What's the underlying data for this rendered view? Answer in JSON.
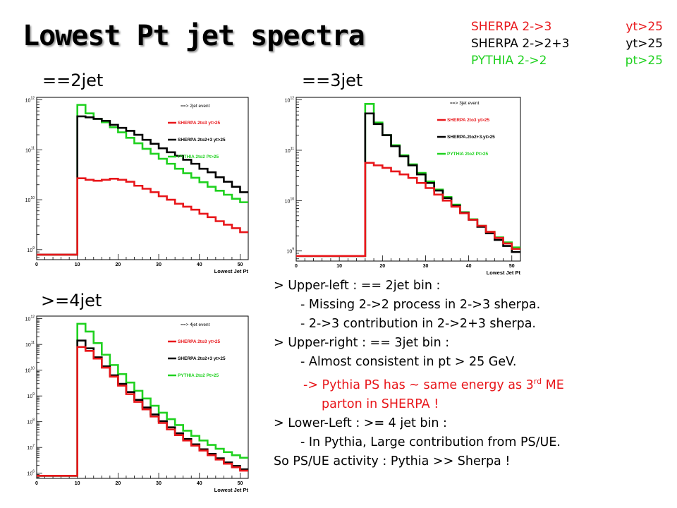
{
  "slide": {
    "title": "Lowest Pt jet spectra",
    "legend": [
      {
        "left": "SHERPA 2->3",
        "right": "yt>25",
        "color": "#e8161a"
      },
      {
        "left": "SHERPA 2->2+3",
        "right": "yt>25",
        "color": "#000000"
      },
      {
        "left": "PYTHIA 2->2",
        "right": "pt>25",
        "color": "#1fd11f"
      }
    ],
    "panel_labels": [
      "==2jet",
      "==3jet",
      ">=4jet"
    ],
    "notes": {
      "l1": "> Upper-left : == 2jet bin :",
      "l2": "- Missing 2->2 process in 2->3 sherpa.",
      "l3": "- 2->3 contribution in 2->2+3 sherpa.",
      "l4": "> Upper-right : == 3jet bin :",
      "l5": "- Almost consistent in pt > 25 GeV.",
      "l6a": "-> Pythia PS has ~ same energy as 3",
      "l6sup": "rd",
      "l6b": " ME",
      "l7": "parton in SHERPA !",
      "l8": "> Lower-Left : >= 4 jet bin :",
      "l9": "- In Pythia, Large contribution from PS/UE.",
      "l10": "So PS/UE activity : Pythia >> Sherpa !"
    }
  },
  "chart_data": [
    {
      "type": "line",
      "title": "",
      "xlabel": "Lowest Jet Pt",
      "ylabel": "",
      "log_y": true,
      "xlim": [
        0,
        52
      ],
      "ylim_log10": [
        8.8,
        12.05
      ],
      "x_ticks": [
        "0",
        "10",
        "20",
        "30",
        "40",
        "50"
      ],
      "y_ticks": [
        {
          "base": "10",
          "exp": "9"
        },
        {
          "base": "10",
          "exp": "10"
        },
        {
          "base": "10",
          "exp": "11"
        },
        {
          "base": "10",
          "exp": "12"
        }
      ],
      "legend": {
        "header": "==> 2jet event",
        "entries": [
          "SHERPA 2to3 yt>25",
          "SHERPA 2to2+3 yt>25",
          "PYTHIA 2to2 Pt>25"
        ]
      },
      "bin_edges": [
        0,
        10,
        12,
        14,
        16,
        18,
        20,
        22,
        24,
        26,
        28,
        30,
        32,
        34,
        36,
        38,
        40,
        42,
        44,
        46,
        48,
        50,
        52
      ],
      "series": [
        {
          "name": "PYTHIA 2to2 Pt>25",
          "color": "#1fd11f",
          "log10_values": [
            8.9,
            11.9,
            11.73,
            11.62,
            11.55,
            11.45,
            11.35,
            11.24,
            11.13,
            11.02,
            10.92,
            10.82,
            10.72,
            10.62,
            10.53,
            10.44,
            10.35,
            10.26,
            10.18,
            10.1,
            10.02,
            9.95
          ]
        },
        {
          "name": "SHERPA 2to2+3 yt>25",
          "color": "#000000",
          "log10_values": [
            8.9,
            11.67,
            11.65,
            11.62,
            11.58,
            11.5,
            11.44,
            11.38,
            11.3,
            11.2,
            11.12,
            11.03,
            10.95,
            10.88,
            10.8,
            10.72,
            10.62,
            10.55,
            10.45,
            10.36,
            10.26,
            10.15
          ]
        },
        {
          "name": "SHERPA 2to3 yt>25",
          "color": "#e8161a",
          "log10_values": [
            8.9,
            10.43,
            10.4,
            10.38,
            10.4,
            10.42,
            10.4,
            10.36,
            10.28,
            10.22,
            10.15,
            10.07,
            10.0,
            9.92,
            9.86,
            9.8,
            9.72,
            9.65,
            9.57,
            9.5,
            9.43,
            9.35
          ]
        }
      ]
    },
    {
      "type": "line",
      "title": "",
      "xlabel": "Lowest Jet Pt",
      "ylabel": "",
      "log_y": true,
      "xlim": [
        0,
        52
      ],
      "ylim_log10": [
        8.8,
        12.05
      ],
      "x_ticks": [
        "0",
        "10",
        "20",
        "30",
        "40",
        "50"
      ],
      "y_ticks": [
        {
          "base": "10",
          "exp": "9"
        },
        {
          "base": "10",
          "exp": "10"
        },
        {
          "base": "10",
          "exp": "11"
        },
        {
          "base": "10",
          "exp": "12"
        }
      ],
      "legend": {
        "header": "==> 3jet event",
        "entries": [
          "SHERPA 2to3 yt>25",
          "SHERPA.2to2+3.yt>25",
          "PYTHIA 2to2 Pt>25"
        ]
      },
      "bin_edges": [
        0,
        16,
        18,
        20,
        22,
        24,
        26,
        28,
        30,
        32,
        34,
        36,
        38,
        40,
        42,
        44,
        46,
        48,
        50,
        52
      ],
      "series": [
        {
          "name": "PYTHIA 2to2 Pt>25",
          "color": "#1fd11f",
          "log10_values": [
            8.9,
            11.92,
            11.55,
            11.3,
            11.1,
            10.9,
            10.72,
            10.55,
            10.38,
            10.22,
            10.07,
            9.92,
            9.77,
            9.63,
            9.5,
            9.38,
            9.27,
            9.17,
            9.07
          ]
        },
        {
          "name": "SHERPA.2to2+3.yt>25",
          "color": "#000000",
          "log10_values": [
            8.9,
            11.73,
            11.52,
            11.3,
            11.08,
            10.88,
            10.7,
            10.52,
            10.35,
            10.2,
            10.05,
            9.9,
            9.76,
            9.62,
            9.48,
            9.35,
            9.22,
            9.1,
            8.98
          ]
        },
        {
          "name": "SHERPA 2to3 yt>25",
          "color": "#e8161a",
          "log10_values": [
            8.9,
            10.75,
            10.7,
            10.65,
            10.58,
            10.52,
            10.45,
            10.35,
            10.25,
            10.12,
            10.0,
            9.88,
            9.75,
            9.62,
            9.5,
            9.38,
            9.26,
            9.15,
            9.04
          ]
        }
      ]
    },
    {
      "type": "line",
      "title": "",
      "xlabel": "Lowest Jet Pt",
      "ylabel": "",
      "log_y": true,
      "xlim": [
        0,
        52
      ],
      "ylim_log10": [
        5.8,
        12.1
      ],
      "x_ticks": [
        "0",
        "10",
        "20",
        "30",
        "40",
        "50"
      ],
      "y_ticks": [
        {
          "base": "10",
          "exp": "6"
        },
        {
          "base": "10",
          "exp": "7"
        },
        {
          "base": "10",
          "exp": "8"
        },
        {
          "base": "10",
          "exp": "9"
        },
        {
          "base": "10",
          "exp": "10"
        },
        {
          "base": "10",
          "exp": "11"
        },
        {
          "base": "10",
          "exp": "12"
        }
      ],
      "legend": {
        "header": "==> 4jet event",
        "entries": [
          "SHERPA 2to3 yt>25",
          "SHERPA 2to2+3 yt>25",
          "PYTHIA 2to2 Pt>25"
        ]
      },
      "bin_edges": [
        0,
        10,
        12,
        14,
        16,
        18,
        20,
        22,
        24,
        26,
        28,
        30,
        32,
        34,
        36,
        38,
        40,
        42,
        44,
        46,
        48,
        50,
        52
      ],
      "series": [
        {
          "name": "PYTHIA 2to2 Pt>25",
          "color": "#1fd11f",
          "log10_values": [
            5.9,
            11.8,
            11.5,
            11.05,
            10.6,
            10.2,
            9.85,
            9.52,
            9.2,
            8.9,
            8.62,
            8.35,
            8.1,
            7.87,
            7.65,
            7.45,
            7.27,
            7.1,
            6.95,
            6.82,
            6.7,
            6.6
          ]
        },
        {
          "name": "SHERPA 2to2+3 yt>25",
          "color": "#000000",
          "log10_values": [
            5.9,
            11.15,
            10.85,
            10.5,
            10.15,
            9.8,
            9.47,
            9.15,
            8.85,
            8.55,
            8.28,
            8.02,
            7.78,
            7.55,
            7.33,
            7.12,
            6.93,
            6.75,
            6.58,
            6.42,
            6.28,
            6.15
          ]
        },
        {
          "name": "SHERPA 2to3 yt>25",
          "color": "#e8161a",
          "log10_values": [
            5.9,
            10.9,
            10.75,
            10.45,
            10.1,
            9.75,
            9.4,
            9.07,
            8.77,
            8.48,
            8.2,
            7.95,
            7.7,
            7.48,
            7.27,
            7.07,
            6.88,
            6.7,
            6.53,
            6.37,
            6.23,
            6.1
          ]
        }
      ]
    }
  ]
}
